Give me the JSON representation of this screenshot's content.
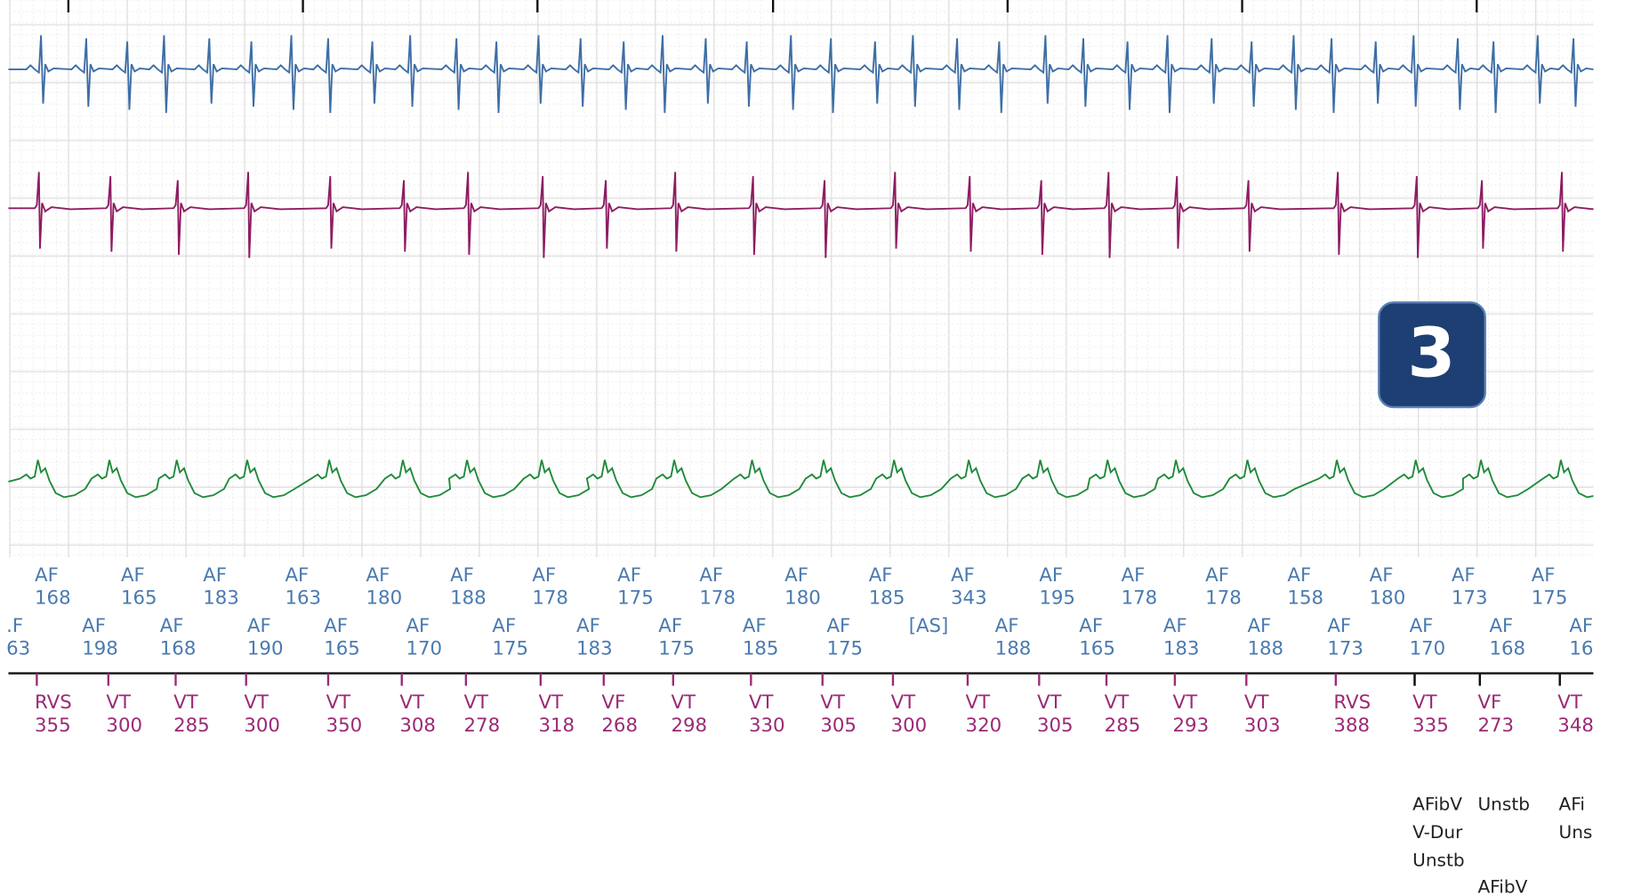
{
  "badge": "3",
  "markers": {
    "atrial_row_1": [
      {
        "label": "AF",
        "value": 168
      },
      {
        "label": "AF",
        "value": 165
      },
      {
        "label": "AF",
        "value": 183
      },
      {
        "label": "AF",
        "value": 163
      },
      {
        "label": "AF",
        "value": 180
      },
      {
        "label": "AF",
        "value": 188
      },
      {
        "label": "AF",
        "value": 178
      },
      {
        "label": "AF",
        "value": 175
      },
      {
        "label": "AF",
        "value": 178
      },
      {
        "label": "AF",
        "value": 180
      },
      {
        "label": "AF",
        "value": 185
      },
      {
        "label": "AF",
        "value": 343
      },
      {
        "label": "AF",
        "value": 195
      },
      {
        "label": "AF",
        "value": 178
      },
      {
        "label": "AF",
        "value": 178
      },
      {
        "label": "AF",
        "value": 158
      },
      {
        "label": "AF",
        "value": 180
      },
      {
        "label": "AF",
        "value": 173
      },
      {
        "label": "AF",
        "value": 175
      }
    ],
    "atrial_row_2": [
      {
        "label": ".F",
        "value": "63"
      },
      {
        "label": "AF",
        "value": 198
      },
      {
        "label": "AF",
        "value": 168
      },
      {
        "label": "AF",
        "value": 190
      },
      {
        "label": "AF",
        "value": 165
      },
      {
        "label": "AF",
        "value": 170
      },
      {
        "label": "AF",
        "value": 175
      },
      {
        "label": "AF",
        "value": 183
      },
      {
        "label": "AF",
        "value": 175
      },
      {
        "label": "AF",
        "value": 185
      },
      {
        "label": "AF",
        "value": 175
      },
      {
        "label": "[AS]"
      },
      {
        "label": "AF",
        "value": 188
      },
      {
        "label": "AF",
        "value": 165
      },
      {
        "label": "AF",
        "value": 183
      },
      {
        "label": "AF",
        "value": 188
      },
      {
        "label": "AF",
        "value": 173
      },
      {
        "label": "AF",
        "value": 170
      },
      {
        "label": "AF",
        "value": 168
      },
      {
        "label": "AF",
        "value": "16"
      }
    ],
    "ventricular": [
      {
        "label": "RVS",
        "value": 355
      },
      {
        "label": "VT",
        "value": 300
      },
      {
        "label": "VT",
        "value": 285
      },
      {
        "label": "VT",
        "value": 300
      },
      {
        "label": "VT",
        "value": 350
      },
      {
        "label": "VT",
        "value": 308
      },
      {
        "label": "VT",
        "value": 278
      },
      {
        "label": "VT",
        "value": 318
      },
      {
        "label": "VF",
        "value": 268
      },
      {
        "label": "VT",
        "value": 298
      },
      {
        "label": "VT",
        "value": 330
      },
      {
        "label": "VT",
        "value": 305
      },
      {
        "label": "VT",
        "value": 300
      },
      {
        "label": "VT",
        "value": 320
      },
      {
        "label": "VT",
        "value": 305
      },
      {
        "label": "VT",
        "value": 285
      },
      {
        "label": "VT",
        "value": 293
      },
      {
        "label": "VT",
        "value": 303
      },
      {
        "label": "RVS",
        "value": 388
      },
      {
        "label": "VT",
        "value": 335
      },
      {
        "label": "VF",
        "value": 273
      },
      {
        "label": "VT",
        "value": 348
      }
    ]
  },
  "episode_notes": [
    "AFibV",
    "V-Dur",
    "Unstb",
    "Unstb",
    "AFibV",
    "AFi",
    "Uns"
  ]
}
